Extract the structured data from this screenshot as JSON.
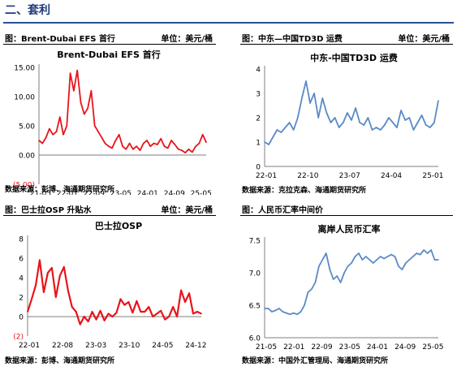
{
  "section": {
    "title": "二、套利"
  },
  "panels": [
    {
      "header": "图：Brent-Dubai EFS 首行",
      "unit": "单位：美元/桶",
      "source": ""
    },
    {
      "header": "图：中东—中国TD3D 运费",
      "unit": "单位：美元/桶",
      "source": "数据来源：克拉克森、海通期货研究所"
    },
    {
      "header": "图：巴士拉OSP 升贴水",
      "unit": "单位：美元/桶",
      "source": "数据来源：彭博、海通期货研究所"
    },
    {
      "header": "图：人民币汇率中间价",
      "unit": "",
      "source": "数据来源：中国外汇管理局、海通期货研究所"
    }
  ],
  "colors": {
    "red": "#e8141a",
    "blue": "#5a8ac6",
    "title_blue": "#1e3a7a"
  },
  "chart_data": [
    {
      "type": "line",
      "title": "Brent-Dubai EFS 首行",
      "source_note": "数据来源：彭博、海通期货研究所",
      "x_ticks": [
        "21-05",
        "22-01",
        "22-09",
        "23-05",
        "24-01",
        "24-09",
        "25-05"
      ],
      "y_ticks": [
        "15.00",
        "10.00",
        "5.00",
        "0.00",
        "(5.00)"
      ],
      "ylim": [
        -5,
        15
      ],
      "xlim": [
        0,
        48
      ],
      "series": [
        {
          "color": "#e8141a",
          "x": [
            0,
            1,
            2,
            3,
            4,
            5,
            6,
            7,
            8,
            9,
            10,
            11,
            12,
            13,
            14,
            15,
            16,
            17,
            18,
            19,
            20,
            21,
            22,
            23,
            24,
            25,
            26,
            27,
            28,
            29,
            30,
            31,
            32,
            33,
            34,
            35,
            36,
            37,
            38,
            39,
            40,
            41,
            42,
            43,
            44,
            45,
            46,
            47,
            48
          ],
          "y": [
            2.5,
            2.0,
            3.0,
            4.5,
            3.5,
            4.0,
            6.5,
            3.5,
            5.0,
            14.0,
            11.0,
            14.5,
            9.0,
            7.0,
            8.0,
            11.0,
            5.0,
            4.0,
            3.0,
            2.0,
            1.5,
            1.2,
            2.5,
            3.5,
            1.5,
            1.0,
            2.0,
            1.0,
            1.5,
            0.8,
            2.0,
            2.5,
            1.5,
            2.0,
            1.8,
            2.8,
            1.5,
            1.2,
            2.5,
            1.8,
            1.0,
            0.8,
            0.4,
            1.0,
            0.5,
            1.5,
            2.0,
            3.5,
            2.2
          ]
        }
      ]
    },
    {
      "type": "line",
      "title": "中东-中国TD3D 运费",
      "x_ticks": [
        "22-01",
        "22-10",
        "23-07",
        "24-04",
        "25-01"
      ],
      "y_ticks": [
        "4",
        "3",
        "2",
        "1",
        "0"
      ],
      "ylim": [
        0,
        4
      ],
      "xlim": [
        0,
        42
      ],
      "series": [
        {
          "color": "#5a8ac6",
          "x": [
            0,
            1,
            2,
            3,
            4,
            5,
            6,
            7,
            8,
            9,
            10,
            11,
            12,
            13,
            14,
            15,
            16,
            17,
            18,
            19,
            20,
            21,
            22,
            23,
            24,
            25,
            26,
            27,
            28,
            29,
            30,
            31,
            32,
            33,
            34,
            35,
            36,
            37,
            38,
            39,
            40,
            41,
            42
          ],
          "y": [
            1.0,
            0.9,
            1.2,
            1.5,
            1.4,
            1.6,
            1.8,
            1.5,
            2.0,
            2.8,
            3.5,
            2.6,
            3.0,
            2.0,
            2.8,
            2.2,
            1.8,
            2.0,
            1.6,
            1.8,
            2.2,
            1.9,
            2.4,
            1.8,
            1.7,
            2.0,
            1.5,
            1.6,
            1.5,
            1.7,
            2.0,
            1.8,
            1.6,
            2.3,
            1.9,
            2.0,
            1.5,
            1.8,
            2.1,
            1.7,
            1.6,
            1.8,
            2.7
          ]
        }
      ]
    },
    {
      "type": "line",
      "title": "巴士拉OSP",
      "x_ticks": [
        "22-01",
        "22-08",
        "23-03",
        "23-10",
        "24-05",
        "24-12"
      ],
      "y_ticks": [
        "8",
        "6",
        "4",
        "2",
        "0",
        "(2)"
      ],
      "ylim": [
        -2,
        8
      ],
      "xlim": [
        0,
        43
      ],
      "series": [
        {
          "color": "#e8141a",
          "x": [
            0,
            1,
            2,
            3,
            4,
            5,
            6,
            7,
            8,
            9,
            10,
            11,
            12,
            13,
            14,
            15,
            16,
            17,
            18,
            19,
            20,
            21,
            22,
            23,
            24,
            25,
            26,
            27,
            28,
            29,
            30,
            31,
            32,
            33,
            34,
            35,
            36,
            37,
            38,
            39,
            40,
            41,
            42,
            43
          ],
          "y": [
            0.5,
            1.8,
            3.2,
            5.8,
            2.5,
            4.5,
            5.0,
            2.0,
            4.2,
            5.1,
            2.7,
            1.0,
            0.5,
            -0.8,
            0.0,
            -0.5,
            0.5,
            -0.3,
            0.6,
            -0.4,
            0.3,
            0.0,
            0.4,
            1.8,
            1.2,
            1.5,
            0.4,
            1.6,
            0.5,
            0.5,
            1.0,
            0.0,
            0.3,
            0.6,
            -0.3,
            0.0,
            1.0,
            0.0,
            2.7,
            1.5,
            2.4,
            0.3,
            0.5,
            0.3
          ]
        }
      ]
    },
    {
      "type": "line",
      "title": "离岸人民币汇率",
      "x_ticks": [
        "21-05",
        "22-01",
        "22-09",
        "23-05",
        "24-01",
        "24-09",
        "25-05"
      ],
      "y_ticks": [
        "7.5",
        "7.0",
        "6.5",
        "6.0"
      ],
      "ylim": [
        6.0,
        7.5
      ],
      "xlim": [
        0,
        48
      ],
      "series": [
        {
          "color": "#5a8ac6",
          "x": [
            0,
            1,
            2,
            3,
            4,
            5,
            6,
            7,
            8,
            9,
            10,
            11,
            12,
            13,
            14,
            15,
            16,
            17,
            18,
            19,
            20,
            21,
            22,
            23,
            24,
            25,
            26,
            27,
            28,
            29,
            30,
            31,
            32,
            33,
            34,
            35,
            36,
            37,
            38,
            39,
            40,
            41,
            42,
            43,
            44,
            45,
            46,
            47,
            48
          ],
          "y": [
            6.45,
            6.45,
            6.4,
            6.42,
            6.45,
            6.4,
            6.38,
            6.36,
            6.38,
            6.36,
            6.4,
            6.5,
            6.7,
            6.75,
            6.85,
            7.1,
            7.2,
            7.3,
            7.05,
            6.9,
            6.95,
            6.85,
            7.0,
            7.1,
            7.15,
            7.25,
            7.3,
            7.2,
            7.25,
            7.2,
            7.15,
            7.2,
            7.25,
            7.22,
            7.25,
            7.28,
            7.25,
            7.1,
            7.05,
            7.15,
            7.2,
            7.25,
            7.3,
            7.28,
            7.35,
            7.3,
            7.35,
            7.2,
            7.2
          ]
        }
      ]
    }
  ]
}
